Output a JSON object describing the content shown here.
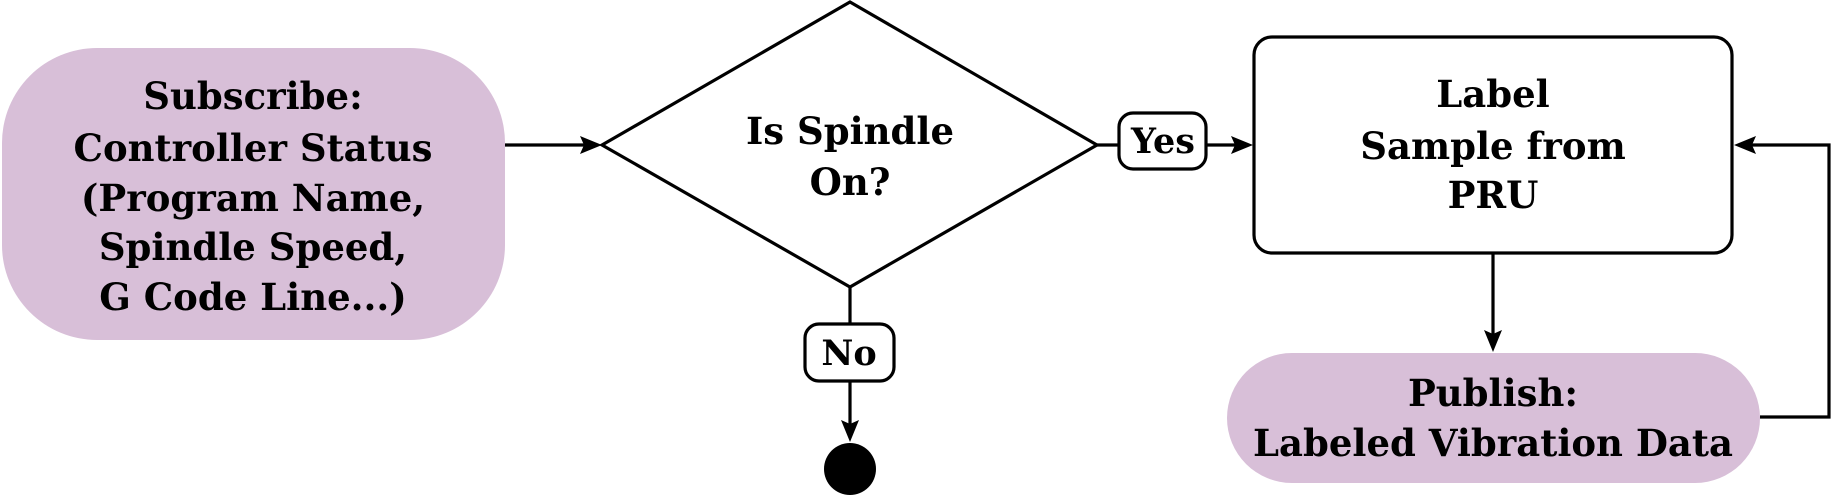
{
  "colors": {
    "terminal_fill": "#d8bfd8",
    "stroke": "#000000",
    "background": "#ffffff"
  },
  "nodes": {
    "subscribe": {
      "shape": "rounded-terminal",
      "lines": [
        "Subscribe:",
        "Controller Status",
        "(Program Name,",
        "Spindle Speed,",
        "G Code Line...)"
      ]
    },
    "decision": {
      "shape": "diamond",
      "lines": [
        "Is Spindle",
        "On?"
      ]
    },
    "label_sample": {
      "shape": "rectangle",
      "lines": [
        "Label",
        "Sample from",
        "PRU"
      ]
    },
    "publish": {
      "shape": "rounded-terminal",
      "lines": [
        "Publish:",
        "Labeled Vibration Data"
      ]
    },
    "end": {
      "shape": "filled-circle"
    }
  },
  "edge_labels": {
    "yes": "Yes",
    "no": "No"
  }
}
